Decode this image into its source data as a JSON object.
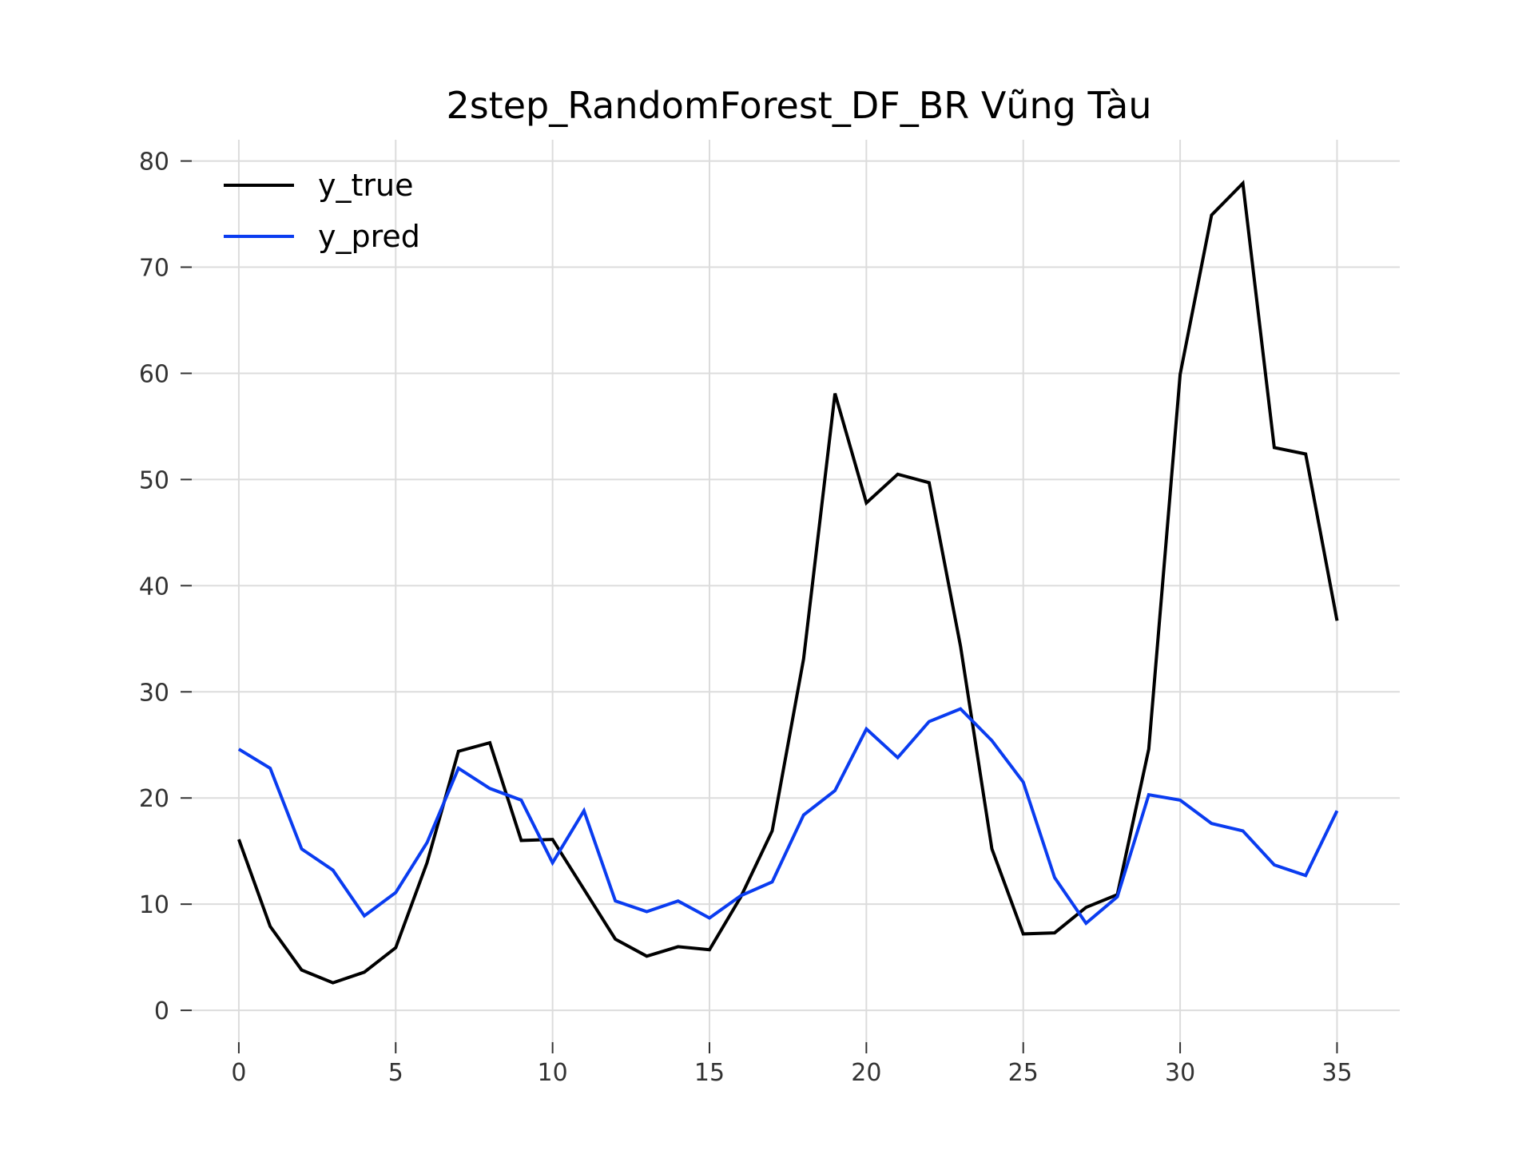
{
  "chart_data": {
    "type": "line",
    "title": "2step_RandomForest_DF_BR Vũng Tàu",
    "xlabel": "",
    "ylabel": "",
    "x": [
      0,
      1,
      2,
      3,
      4,
      5,
      6,
      7,
      8,
      9,
      10,
      11,
      12,
      13,
      14,
      15,
      16,
      17,
      18,
      19,
      20,
      21,
      22,
      23,
      24,
      25,
      26,
      27,
      28,
      29,
      30,
      31,
      32,
      33,
      34,
      35
    ],
    "xlim": [
      -1.5,
      37.0
    ],
    "ylim": [
      -3,
      82
    ],
    "xticks": [
      0,
      5,
      10,
      15,
      20,
      25,
      30,
      35
    ],
    "yticks": [
      0,
      10,
      20,
      30,
      40,
      50,
      60,
      70,
      80
    ],
    "grid": true,
    "legend_position": "top-left",
    "series": [
      {
        "name": "y_true",
        "color": "#000000",
        "values": [
          16.1,
          7.9,
          3.8,
          2.6,
          3.6,
          5.9,
          13.9,
          24.4,
          25.2,
          16.0,
          16.1,
          11.4,
          6.7,
          5.1,
          6.0,
          5.7,
          10.7,
          16.9,
          33.1,
          58.1,
          47.8,
          50.5,
          49.7,
          34.3,
          15.2,
          7.2,
          7.3,
          9.7,
          10.9,
          24.6,
          59.9,
          74.9,
          77.9,
          53.0,
          52.4,
          36.7
        ]
      },
      {
        "name": "y_pred",
        "color": "#0a3cf0",
        "values": [
          24.6,
          22.8,
          15.2,
          13.2,
          8.9,
          11.1,
          15.8,
          22.8,
          20.9,
          19.8,
          13.9,
          18.8,
          10.3,
          9.3,
          10.3,
          8.7,
          10.8,
          12.1,
          18.4,
          20.7,
          26.5,
          23.8,
          27.2,
          28.4,
          25.4,
          21.5,
          12.5,
          8.2,
          10.7,
          20.3,
          19.8,
          17.6,
          16.9,
          13.7,
          12.7,
          18.8
        ]
      }
    ]
  }
}
